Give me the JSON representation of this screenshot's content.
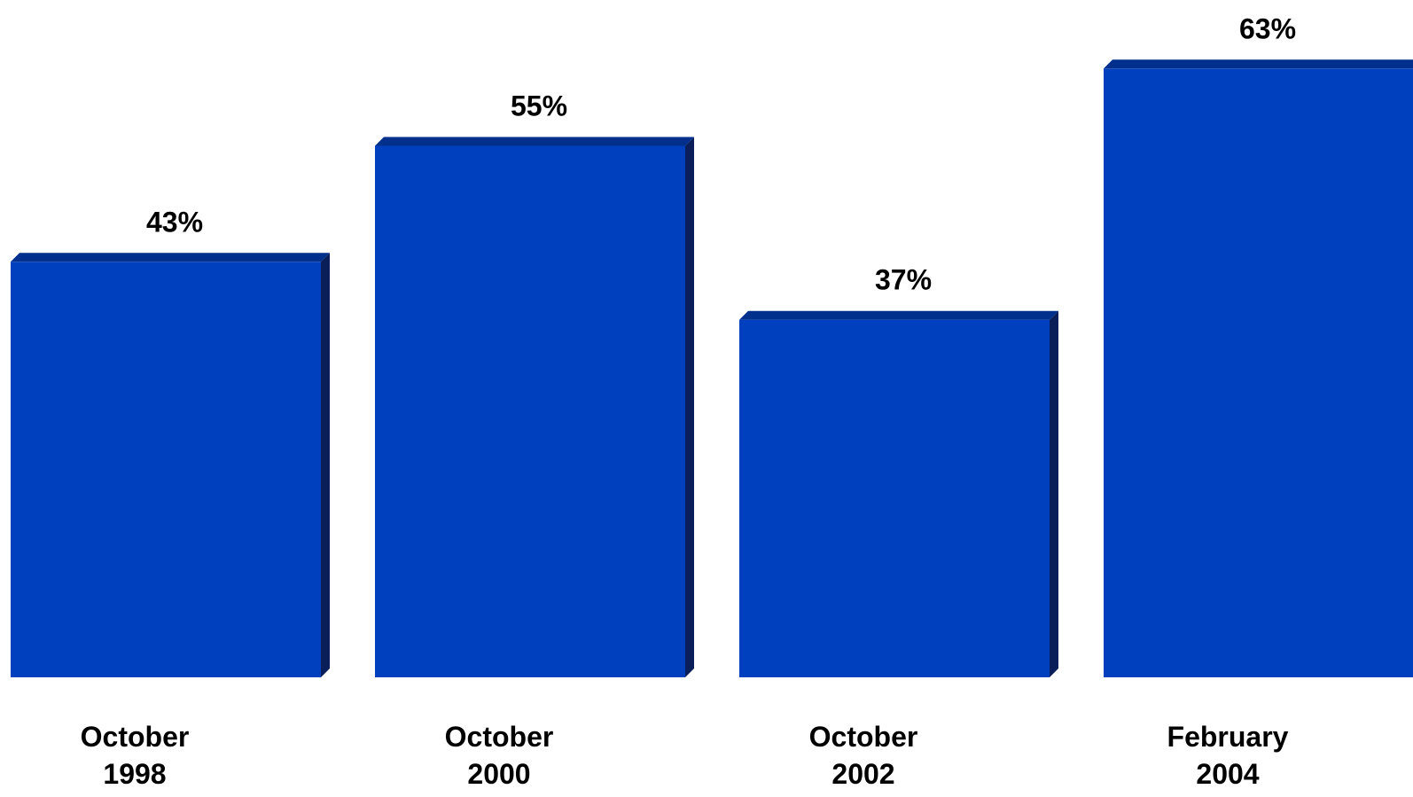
{
  "chart_data": {
    "type": "bar",
    "categories": [
      [
        "October",
        "1998"
      ],
      [
        "October",
        "2000"
      ],
      [
        "October",
        "2002"
      ],
      [
        "February",
        "2004"
      ]
    ],
    "values": [
      43,
      55,
      37,
      63
    ],
    "data_labels": [
      "43%",
      "55%",
      "37%",
      "63%"
    ],
    "unit": "%",
    "bar_style": "3d",
    "grid": false,
    "legend": "none",
    "colors": {
      "bar_front": "#0040BF",
      "bar_top": "#00308C",
      "bar_side": "#0A1E5A",
      "text": "#000000",
      "background": "#FFFFFF"
    }
  }
}
